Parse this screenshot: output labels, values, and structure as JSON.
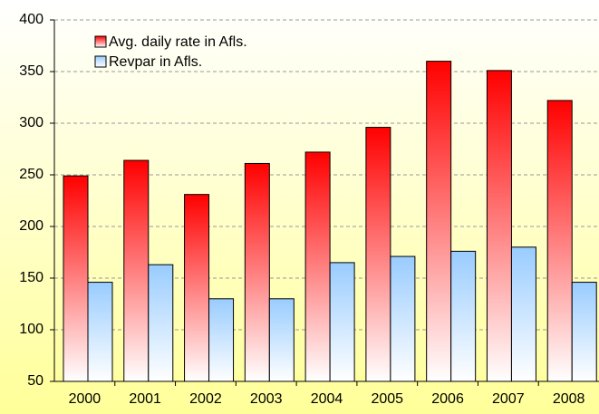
{
  "chart_data": {
    "type": "bar",
    "categories": [
      "2000",
      "2001",
      "2002",
      "2003",
      "2004",
      "2005",
      "2006",
      "2007",
      "2008"
    ],
    "series": [
      {
        "name": "Avg. daily rate in Afls.",
        "color": "#ff0000",
        "values": [
          249,
          264,
          231,
          261,
          272,
          296,
          360,
          351,
          322
        ]
      },
      {
        "name": "Revpar in Afls.",
        "color": "#99ccff",
        "values": [
          146,
          163,
          130,
          130,
          165,
          171,
          176,
          180,
          146
        ]
      }
    ],
    "ylim": [
      50,
      400
    ],
    "yticks": [
      50,
      100,
      150,
      200,
      250,
      300,
      350,
      400
    ],
    "grid": true,
    "legend": "top-left"
  }
}
